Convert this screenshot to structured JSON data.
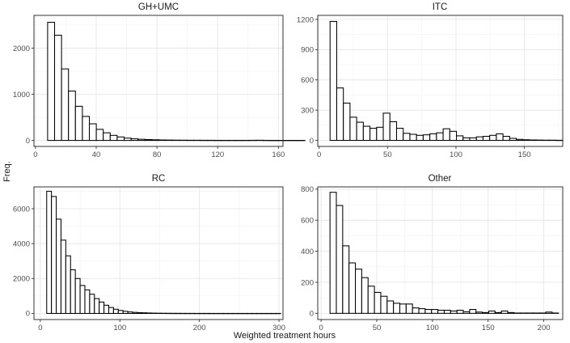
{
  "figure": {
    "xlabel": "Weighted treatment hours",
    "ylabel": "Freq."
  },
  "chart_data": [
    {
      "type": "bar",
      "title": "GH+UMC",
      "xlim": [
        -1,
        163
      ],
      "ylim": [
        -130,
        2710
      ],
      "xticks": [
        0,
        40,
        80,
        120,
        160
      ],
      "yticks": [
        0,
        1000,
        2000
      ],
      "xticklabels": [
        "0",
        "40",
        "80",
        "120",
        "160"
      ],
      "yticklabels": [
        "0",
        "1000",
        "2000"
      ],
      "bin_start": 8,
      "bin_width": 4.58,
      "values": [
        2560,
        2280,
        1550,
        1070,
        740,
        520,
        360,
        240,
        165,
        110,
        75,
        50,
        35,
        25,
        18,
        14,
        10,
        8,
        6,
        5,
        4,
        4,
        3,
        3,
        2,
        2,
        2,
        2,
        2,
        3,
        4,
        2,
        1,
        1,
        1,
        1,
        1
      ],
      "grid": true
    },
    {
      "type": "bar",
      "title": "ITC",
      "xlim": [
        -1,
        178
      ],
      "ylim": [
        -60,
        1240
      ],
      "xticks": [
        0,
        50,
        100,
        150
      ],
      "yticks": [
        0,
        300,
        600,
        900,
        1200
      ],
      "xticklabels": [
        "0",
        "50",
        "100",
        "150"
      ],
      "yticklabels": [
        "0",
        "300",
        "600",
        "900",
        "1200"
      ],
      "bin_start": 8,
      "bin_width": 4.86,
      "values": [
        1180,
        520,
        370,
        230,
        180,
        140,
        120,
        130,
        270,
        185,
        120,
        70,
        60,
        50,
        55,
        65,
        75,
        115,
        90,
        45,
        25,
        25,
        35,
        40,
        50,
        65,
        40,
        20,
        10,
        6,
        4,
        3,
        2,
        2,
        1
      ],
      "grid": true
    },
    {
      "type": "bar",
      "title": "RC",
      "xlim": [
        -8,
        305
      ],
      "ylim": [
        -350,
        7250
      ],
      "xticks": [
        0,
        100,
        200,
        300
      ],
      "yticks": [
        0,
        2000,
        4000,
        6000
      ],
      "xticklabels": [
        "0",
        "100",
        "200",
        "300"
      ],
      "yticklabels": [
        "0",
        "2000",
        "4000",
        "6000"
      ],
      "bin_start": 8,
      "bin_width": 6.0,
      "values": [
        7000,
        6700,
        5400,
        4200,
        3300,
        2500,
        2000,
        1600,
        1350,
        1100,
        850,
        650,
        470,
        340,
        240,
        170,
        120,
        85,
        60,
        45,
        35,
        25,
        18,
        13,
        10,
        8,
        6,
        5,
        4,
        3,
        3,
        2,
        2,
        2,
        1,
        1,
        1,
        1,
        1,
        1,
        1,
        1,
        1,
        1,
        1,
        1,
        1,
        1,
        1
      ],
      "grid": true
    },
    {
      "type": "bar",
      "title": "Other",
      "xlim": [
        -3,
        217
      ],
      "ylim": [
        -40,
        815
      ],
      "xticks": [
        0,
        50,
        100,
        150,
        200
      ],
      "yticks": [
        0,
        200,
        400,
        600,
        800
      ],
      "xticklabels": [
        "0",
        "50",
        "100",
        "150",
        "200"
      ],
      "yticklabels": [
        "0",
        "200",
        "400",
        "600",
        "800"
      ],
      "bin_start": 8,
      "bin_width": 5.7,
      "values": [
        780,
        695,
        435,
        325,
        285,
        230,
        175,
        135,
        110,
        80,
        65,
        60,
        60,
        35,
        30,
        25,
        25,
        20,
        20,
        15,
        20,
        10,
        25,
        8,
        5,
        15,
        5,
        15,
        5,
        2,
        2,
        2,
        2,
        2,
        8,
        2
      ],
      "grid": true
    }
  ]
}
